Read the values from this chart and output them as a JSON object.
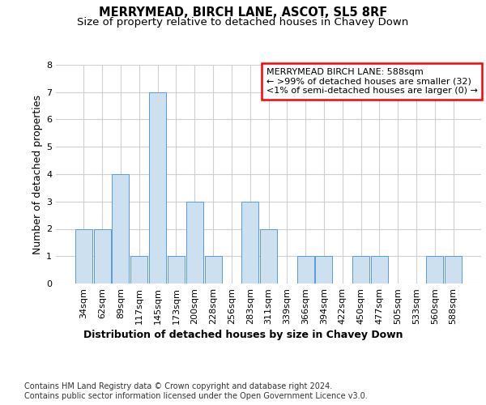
{
  "title": "MERRYMEAD, BIRCH LANE, ASCOT, SL5 8RF",
  "subtitle": "Size of property relative to detached houses in Chavey Down",
  "xlabel": "Distribution of detached houses by size in Chavey Down",
  "ylabel": "Number of detached properties",
  "footer1": "Contains HM Land Registry data © Crown copyright and database right 2024.",
  "footer2": "Contains public sector information licensed under the Open Government Licence v3.0.",
  "categories": [
    "34sqm",
    "62sqm",
    "89sqm",
    "117sqm",
    "145sqm",
    "173sqm",
    "200sqm",
    "228sqm",
    "256sqm",
    "283sqm",
    "311sqm",
    "339sqm",
    "366sqm",
    "394sqm",
    "422sqm",
    "450sqm",
    "477sqm",
    "505sqm",
    "533sqm",
    "560sqm",
    "588sqm"
  ],
  "values": [
    2,
    2,
    4,
    1,
    7,
    1,
    3,
    1,
    0,
    3,
    2,
    0,
    1,
    1,
    0,
    1,
    1,
    0,
    0,
    1,
    1
  ],
  "bar_color": "#cce0f0",
  "bar_edge_color": "#5b9bd5",
  "annotation_title": "MERRYMEAD BIRCH LANE: 588sqm",
  "annotation_line1": "← >99% of detached houses are smaller (32)",
  "annotation_line2": "<1% of semi-detached houses are larger (0) →",
  "ylim": [
    0,
    8
  ],
  "yticks": [
    0,
    1,
    2,
    3,
    4,
    5,
    6,
    7,
    8
  ],
  "bg_color": "#ffffff",
  "grid_color": "#d0d0d0",
  "title_fontsize": 10.5,
  "subtitle_fontsize": 9.5,
  "ylabel_fontsize": 9,
  "xlabel_fontsize": 9,
  "tick_fontsize": 8,
  "footer_fontsize": 7,
  "ann_fontsize": 8
}
